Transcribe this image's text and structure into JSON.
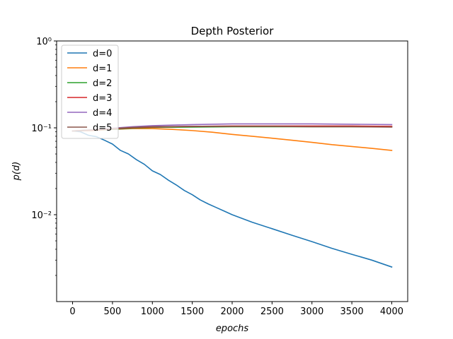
{
  "chart_data": {
    "type": "line",
    "title": "Depth Posterior",
    "xlabel": "epochs",
    "ylabel": "p(d)",
    "yscale": "log",
    "xlim": [
      -200,
      4200
    ],
    "ylim": [
      0.001,
      1
    ],
    "xticks": [
      0,
      500,
      1000,
      1500,
      2000,
      2500,
      3000,
      3500,
      4000
    ],
    "yticks": [
      {
        "value": 0.01,
        "label": "10⁻²"
      },
      {
        "value": 0.1,
        "label": "10⁻¹"
      },
      {
        "value": 1,
        "label": "10⁰"
      }
    ],
    "grid": false,
    "legend_position": "upper-left",
    "series": [
      {
        "name": "d=0",
        "color": "#1f77b4",
        "x": [
          0,
          100,
          200,
          300,
          400,
          500,
          600,
          700,
          800,
          900,
          1000,
          1100,
          1200,
          1300,
          1400,
          1500,
          1600,
          1700,
          1800,
          1900,
          2000,
          2250,
          2500,
          2750,
          3000,
          3250,
          3500,
          3750,
          4000
        ],
        "y": [
          0.092,
          0.09,
          0.082,
          0.079,
          0.072,
          0.065,
          0.055,
          0.05,
          0.043,
          0.038,
          0.032,
          0.029,
          0.025,
          0.022,
          0.019,
          0.017,
          0.0148,
          0.0133,
          0.0121,
          0.011,
          0.01,
          0.0082,
          0.0069,
          0.0058,
          0.0049,
          0.0041,
          0.0035,
          0.003,
          0.0025
        ]
      },
      {
        "name": "d=1",
        "color": "#ff7f0e",
        "x": [
          0,
          250,
          500,
          750,
          1000,
          1250,
          1500,
          1750,
          2000,
          2250,
          2500,
          2750,
          3000,
          3250,
          3500,
          3750,
          4000
        ],
        "y": [
          0.092,
          0.093,
          0.096,
          0.098,
          0.098,
          0.096,
          0.093,
          0.089,
          0.084,
          0.08,
          0.076,
          0.072,
          0.068,
          0.064,
          0.061,
          0.058,
          0.055
        ]
      },
      {
        "name": "d=2",
        "color": "#2ca02c",
        "x": [
          0,
          250,
          500,
          750,
          1000,
          1500,
          2000,
          2500,
          3000,
          3500,
          4000
        ],
        "y": [
          0.092,
          0.094,
          0.096,
          0.099,
          0.101,
          0.102,
          0.103,
          0.103,
          0.103,
          0.103,
          0.103
        ]
      },
      {
        "name": "d=3",
        "color": "#d62728",
        "x": [
          0,
          250,
          500,
          750,
          1000,
          1500,
          2000,
          2500,
          3000,
          3500,
          4000
        ],
        "y": [
          0.092,
          0.094,
          0.097,
          0.1,
          0.102,
          0.104,
          0.105,
          0.105,
          0.105,
          0.105,
          0.104
        ]
      },
      {
        "name": "d=4",
        "color": "#9467bd",
        "x": [
          0,
          250,
          500,
          750,
          1000,
          1500,
          2000,
          2500,
          3000,
          3500,
          4000
        ],
        "y": [
          0.092,
          0.095,
          0.099,
          0.103,
          0.106,
          0.109,
          0.111,
          0.111,
          0.111,
          0.11,
          0.109
        ]
      },
      {
        "name": "d=5",
        "color": "#8c564b",
        "x": [
          0,
          250,
          500,
          750,
          1000,
          1500,
          2000,
          2500,
          3000,
          3500,
          4000
        ],
        "y": [
          0.092,
          0.095,
          0.098,
          0.101,
          0.103,
          0.104,
          0.104,
          0.104,
          0.103,
          0.103,
          0.102
        ]
      }
    ]
  }
}
